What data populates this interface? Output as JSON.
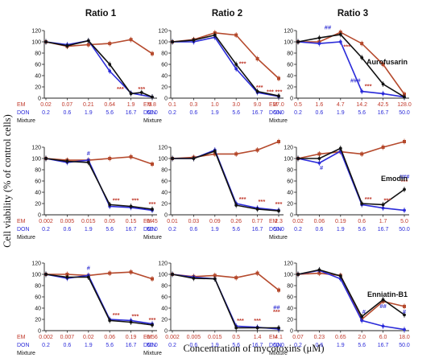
{
  "figure": {
    "ylabel": "Cell viability (% of control cells)",
    "xlabel": "Concentration of mycotoxins (μM)",
    "col_titles": [
      "Ratio 1",
      "Ratio 2",
      "Ratio 3"
    ],
    "row_labels": [
      "Aurofusarin",
      "Emodin",
      "Enniatin-B1"
    ],
    "row_prefixes": {
      "em": "EM",
      "don": "DON",
      "mix": "Mixture"
    },
    "colors": {
      "em": "#b5492c",
      "don": "#2b2bd9",
      "mix": "#111111",
      "sig_em": "#c0392b",
      "sig_don": "#3b3bd6"
    }
  },
  "chart_data": [
    {
      "type": "line",
      "row": 0,
      "col": 0,
      "ylim": [
        0,
        120
      ],
      "yticks": [
        0,
        20,
        40,
        60,
        80,
        100,
        120
      ],
      "em_conc": [
        "0.02",
        "0.07",
        "0.21",
        "0.64",
        "1.9",
        "5.8"
      ],
      "don_conc": [
        "0.2",
        "0.6",
        "1.9",
        "5.6",
        "16.7",
        "50.0"
      ],
      "series": [
        {
          "name": "EM",
          "key": "em",
          "values": [
            100,
            92,
            95,
            97,
            104,
            79
          ]
        },
        {
          "name": "DON",
          "key": "don",
          "values": [
            100,
            95,
            102,
            48,
            9,
            2
          ]
        },
        {
          "name": "Mixture",
          "key": "mix",
          "values": [
            100,
            93,
            102,
            60,
            8,
            10,
            2
          ]
        }
      ],
      "mix_x": [
        0,
        1,
        2,
        3,
        4,
        4.5,
        5
      ],
      "annotations": [
        {
          "x": 3.5,
          "y": 13,
          "text": "***",
          "key": "sig_em"
        },
        {
          "x": 4.5,
          "y": 13,
          "text": "***",
          "key": "sig_em"
        }
      ]
    },
    {
      "type": "line",
      "row": 0,
      "col": 1,
      "ylim": [
        0,
        120
      ],
      "yticks": [
        0,
        20,
        40,
        60,
        80,
        100,
        120
      ],
      "em_conc": [
        "0.1",
        "0.3",
        "1.0",
        "3.0",
        "9.0",
        "27.0"
      ],
      "don_conc": [
        "0.2",
        "0.6",
        "1.9",
        "5.6",
        "16.7",
        "50.0"
      ],
      "series": [
        {
          "name": "EM",
          "key": "em",
          "values": [
            100,
            104,
            116,
            112,
            70,
            35
          ]
        },
        {
          "name": "DON",
          "key": "don",
          "values": [
            100,
            100,
            108,
            52,
            10,
            3
          ]
        },
        {
          "name": "Mixture",
          "key": "mix",
          "values": [
            100,
            103,
            112,
            60,
            12,
            4
          ]
        }
      ],
      "annotations": [
        {
          "x": 3.3,
          "y": 58,
          "text": "***",
          "key": "sig_em"
        },
        {
          "x": 4.1,
          "y": 16,
          "text": "***",
          "key": "sig_em"
        },
        {
          "x": 4.6,
          "y": 8,
          "text": "***",
          "key": "sig_em"
        },
        {
          "x": 5,
          "y": 8,
          "text": "***",
          "key": "sig_em"
        }
      ]
    },
    {
      "type": "line",
      "row": 0,
      "col": 2,
      "ylim": [
        0,
        120
      ],
      "yticks": [
        0,
        20,
        40,
        60,
        80,
        100,
        120
      ],
      "em_conc": [
        "0.5",
        "1.6",
        "4.7",
        "14.2",
        "42.5",
        "128.0"
      ],
      "don_conc": [
        "0.2",
        "0.6",
        "1.9",
        "5.6",
        "16.7",
        "50.0"
      ],
      "series": [
        {
          "name": "EM",
          "key": "em",
          "values": [
            100,
            100,
            117,
            97,
            60,
            7
          ]
        },
        {
          "name": "DON",
          "key": "don",
          "values": [
            100,
            97,
            100,
            12,
            8,
            2
          ]
        },
        {
          "name": "Mixture",
          "key": "mix",
          "values": [
            100,
            107,
            113,
            72,
            25,
            2
          ]
        }
      ],
      "annotations": [
        {
          "x": 1.4,
          "y": 122,
          "text": "##",
          "key": "sig_don"
        },
        {
          "x": 2.3,
          "y": 88,
          "text": "***",
          "key": "sig_em"
        },
        {
          "x": 2.7,
          "y": 28,
          "text": "###",
          "key": "sig_don"
        },
        {
          "x": 3.3,
          "y": 18,
          "text": "***",
          "key": "sig_em"
        }
      ]
    },
    {
      "type": "line",
      "row": 1,
      "col": 0,
      "ylim": [
        0,
        120
      ],
      "yticks": [
        0,
        20,
        40,
        60,
        80,
        100,
        120
      ],
      "em_conc": [
        "0.002",
        "0.005",
        "0.015",
        "0.05",
        "0.15",
        "0.45"
      ],
      "don_conc": [
        "0.2",
        "0.6",
        "1.9",
        "5.6",
        "16.7",
        "50.0"
      ],
      "series": [
        {
          "name": "EM",
          "key": "em",
          "values": [
            100,
            97,
            97,
            100,
            103,
            90
          ]
        },
        {
          "name": "DON",
          "key": "don",
          "values": [
            100,
            93,
            97,
            15,
            13,
            8
          ]
        },
        {
          "name": "Mixture",
          "key": "mix",
          "values": [
            100,
            95,
            93,
            18,
            15,
            10
          ]
        }
      ],
      "annotations": [
        {
          "x": 2,
          "y": 106,
          "text": "#",
          "key": "sig_don"
        },
        {
          "x": 3.3,
          "y": 22,
          "text": "***",
          "key": "sig_em"
        },
        {
          "x": 4.2,
          "y": 22,
          "text": "***",
          "key": "sig_em"
        },
        {
          "x": 5,
          "y": 16,
          "text": "***",
          "key": "sig_em"
        }
      ]
    },
    {
      "type": "line",
      "row": 1,
      "col": 1,
      "ylim": [
        0,
        120
      ],
      "yticks": [
        0,
        20,
        40,
        60,
        80,
        100,
        120
      ],
      "em_conc": [
        "0.01",
        "0.03",
        "0.09",
        "0.26",
        "0.77",
        "2.3"
      ],
      "don_conc": [
        "0.2",
        "0.6",
        "1.9",
        "5.6",
        "16.7",
        "50.0"
      ],
      "series": [
        {
          "name": "EM",
          "key": "em",
          "values": [
            100,
            102,
            108,
            108,
            115,
            130
          ]
        },
        {
          "name": "DON",
          "key": "don",
          "values": [
            100,
            100,
            115,
            20,
            12,
            8
          ]
        },
        {
          "name": "Mixture",
          "key": "mix",
          "values": [
            100,
            100,
            113,
            17,
            10,
            7
          ]
        }
      ],
      "annotations": [
        {
          "x": 3.3,
          "y": 24,
          "text": "***",
          "key": "sig_em"
        },
        {
          "x": 4.2,
          "y": 20,
          "text": "***",
          "key": "sig_em"
        },
        {
          "x": 5,
          "y": 16,
          "text": "***",
          "key": "sig_em"
        }
      ]
    },
    {
      "type": "line",
      "row": 1,
      "col": 2,
      "ylim": [
        0,
        120
      ],
      "yticks": [
        0,
        20,
        40,
        60,
        80,
        100,
        120
      ],
      "em_conc": [
        "0.02",
        "0.06",
        "0.19",
        "0.6",
        "1.7",
        "5.0"
      ],
      "don_conc": [
        "0.2",
        "0.6",
        "1.9",
        "5.6",
        "16.7",
        "50.0"
      ],
      "series": [
        {
          "name": "EM",
          "key": "em",
          "values": [
            100,
            108,
            112,
            108,
            120,
            130
          ]
        },
        {
          "name": "DON",
          "key": "don",
          "values": [
            100,
            92,
            113,
            18,
            12,
            8
          ]
        },
        {
          "name": "Mixture",
          "key": "mix",
          "values": [
            100,
            100,
            118,
            20,
            18,
            45
          ]
        }
      ],
      "annotations": [
        {
          "x": 1.1,
          "y": 80,
          "text": "#",
          "key": "sig_don"
        },
        {
          "x": 3.3,
          "y": 24,
          "text": "***",
          "key": "sig_em"
        },
        {
          "x": 4.2,
          "y": 22,
          "text": "***",
          "key": "sig_em"
        },
        {
          "x": 5,
          "y": 64,
          "text": "###",
          "key": "sig_don"
        },
        {
          "x": 5,
          "y": 56,
          "text": "***",
          "key": "sig_em"
        }
      ]
    },
    {
      "type": "line",
      "row": 2,
      "col": 0,
      "ylim": [
        0,
        120
      ],
      "yticks": [
        0,
        20,
        40,
        60,
        80,
        100,
        120
      ],
      "em_conc": [
        "0.002",
        "0.007",
        "0.02",
        "0.06",
        "0.19",
        "0.56"
      ],
      "don_conc": [
        "0.2",
        "0.6",
        "1.9",
        "5.6",
        "16.7",
        "50.0"
      ],
      "series": [
        {
          "name": "EM",
          "key": "em",
          "values": [
            100,
            100,
            98,
            102,
            104,
            92
          ]
        },
        {
          "name": "DON",
          "key": "don",
          "values": [
            100,
            93,
            98,
            20,
            18,
            12
          ]
        },
        {
          "name": "Mixture",
          "key": "mix",
          "values": [
            100,
            95,
            95,
            18,
            15,
            10
          ]
        }
      ],
      "annotations": [
        {
          "x": 2,
          "y": 108,
          "text": "#",
          "key": "sig_don"
        },
        {
          "x": 3.3,
          "y": 24,
          "text": "***",
          "key": "sig_em"
        },
        {
          "x": 4.2,
          "y": 22,
          "text": "***",
          "key": "sig_em"
        },
        {
          "x": 5,
          "y": 16,
          "text": "***",
          "key": "sig_em"
        }
      ]
    },
    {
      "type": "line",
      "row": 2,
      "col": 1,
      "ylim": [
        0,
        120
      ],
      "yticks": [
        0,
        20,
        40,
        60,
        80,
        100,
        120
      ],
      "em_conc": [
        "0.002",
        "0.005",
        "0.015",
        "0.5",
        "1.4",
        "4.1"
      ],
      "don_conc": [
        "0.2",
        "0.6",
        "1.9",
        "5.6",
        "16.7",
        "50.0"
      ],
      "series": [
        {
          "name": "EM",
          "key": "em",
          "values": [
            100,
            96,
            98,
            94,
            102,
            72
          ]
        },
        {
          "name": "DON",
          "key": "don",
          "values": [
            100,
            95,
            92,
            8,
            6,
            3
          ]
        },
        {
          "name": "Mixture",
          "key": "mix",
          "values": [
            100,
            93,
            92,
            5,
            5,
            5
          ]
        }
      ],
      "annotations": [
        {
          "x": 3.2,
          "y": 14,
          "text": "***",
          "key": "sig_em"
        },
        {
          "x": 4,
          "y": 14,
          "text": "***",
          "key": "sig_em"
        },
        {
          "x": 4.9,
          "y": 38,
          "text": "##",
          "key": "sig_don"
        },
        {
          "x": 4.9,
          "y": 30,
          "text": "***",
          "key": "sig_em"
        }
      ]
    },
    {
      "type": "line",
      "row": 2,
      "col": 2,
      "ylim": [
        0,
        120
      ],
      "yticks": [
        0,
        20,
        40,
        60,
        80,
        100,
        120
      ],
      "em_conc": [
        "0.07",
        "0.23",
        "0.65",
        "2.0",
        "6.0",
        "18.0"
      ],
      "don_conc": [
        "0.2",
        "0.6",
        "1.9",
        "5.6",
        "16.7",
        "50.0"
      ],
      "series": [
        {
          "name": "EM",
          "key": "em",
          "values": [
            100,
            102,
            98,
            20,
            52,
            43
          ]
        },
        {
          "name": "DON",
          "key": "don",
          "values": [
            100,
            107,
            92,
            18,
            8,
            2
          ]
        },
        {
          "name": "Mixture",
          "key": "mix",
          "values": [
            100,
            108,
            97,
            25,
            55,
            28
          ]
        }
      ],
      "annotations": [
        {
          "x": 3.1,
          "y": 30,
          "text": "#",
          "key": "sig_don"
        },
        {
          "x": 4,
          "y": 40,
          "text": "##",
          "key": "sig_don"
        },
        {
          "x": 5,
          "y": 30,
          "text": "#",
          "key": "sig_don"
        }
      ]
    }
  ]
}
